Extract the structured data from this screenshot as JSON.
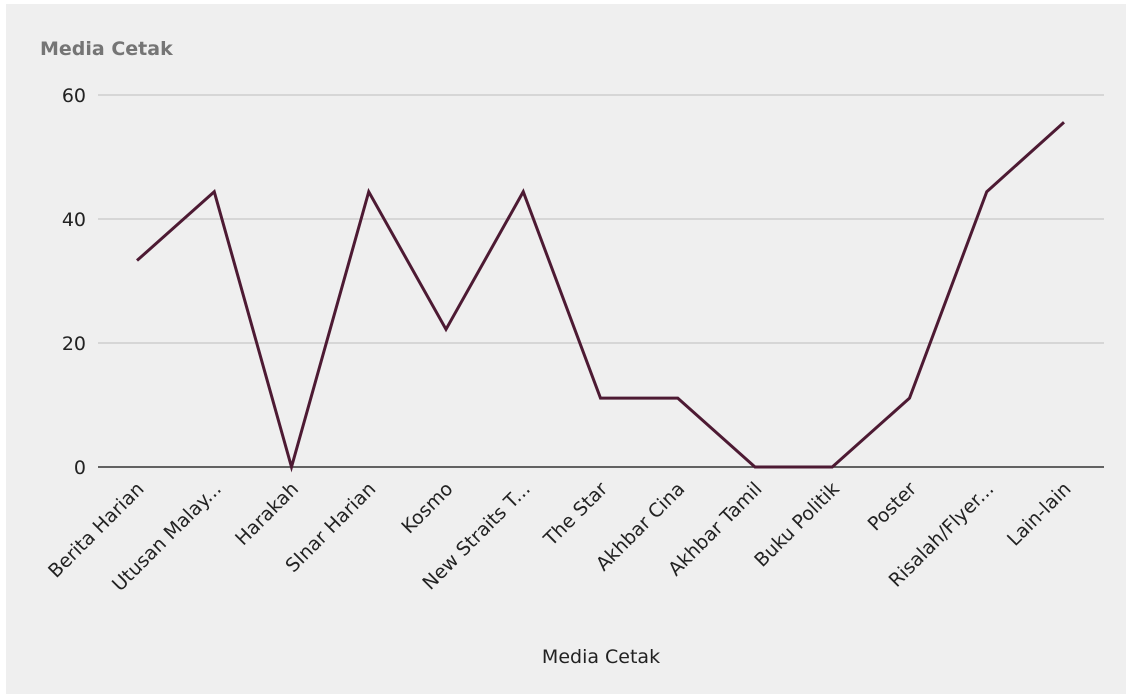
{
  "chart_data": {
    "type": "line",
    "title": "Media Cetak",
    "xlabel": "Media Cetak",
    "ylabel": "",
    "categories": [
      "Berita Harian",
      "Utusan Malay...",
      "Harakah",
      "SInar Harian",
      "Kosmo",
      "New Straits T...",
      "The Star",
      "Akhbar Cina",
      "Akhbar Tamil",
      "Buku Politik",
      "Poster",
      "Risalah/Flyer...",
      "Lain-lain"
    ],
    "values": [
      33.3,
      44.4,
      0,
      44.4,
      22.2,
      44.4,
      11.1,
      11.1,
      0,
      0,
      11.1,
      44.4,
      55.6
    ],
    "ylim": [
      0,
      60
    ],
    "yticks": [
      "0",
      "20",
      "40",
      "60"
    ],
    "grid": true,
    "legend": "none",
    "line_color": "#4d1a33"
  }
}
